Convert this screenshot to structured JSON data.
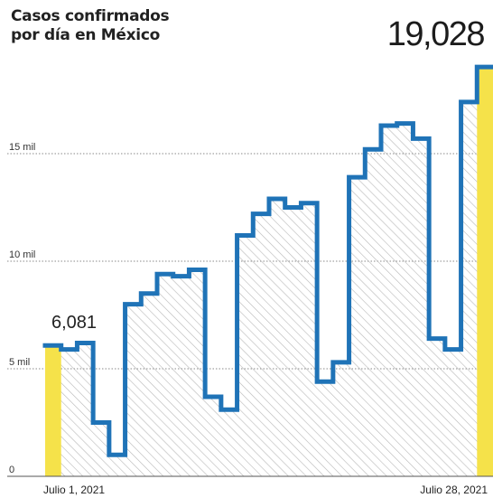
{
  "title_line1": "Casos confirmados",
  "title_line2": "por día en México",
  "colors": {
    "line": "#1f73b7",
    "highlight": "#f5e24a",
    "hatch": "#b8b8b8",
    "grid": "#8a8a8a"
  },
  "chart_data": {
    "type": "line",
    "title": "Casos confirmados por día en México",
    "ylim": [
      0,
      20000
    ],
    "y_ticks": [
      {
        "value": 0,
        "label": "0"
      },
      {
        "value": 5000,
        "label": "5 mil"
      },
      {
        "value": 10000,
        "label": "10 mil"
      },
      {
        "value": 15000,
        "label": "15 mil"
      }
    ],
    "x_labels": {
      "first": "Julio 1, 2021",
      "last": "Julio 28, 2021"
    },
    "first_value_label": "6,081",
    "last_value_label": "19,028",
    "grid": true,
    "series": [
      {
        "x": [
          "2021-07-01",
          "2021-07-02",
          "2021-07-03",
          "2021-07-04",
          "2021-07-05",
          "2021-07-06",
          "2021-07-07",
          "2021-07-08",
          "2021-07-09",
          "2021-07-10",
          "2021-07-11",
          "2021-07-12",
          "2021-07-13",
          "2021-07-14",
          "2021-07-15",
          "2021-07-16",
          "2021-07-17",
          "2021-07-18",
          "2021-07-19",
          "2021-07-20",
          "2021-07-21",
          "2021-07-22",
          "2021-07-23",
          "2021-07-24",
          "2021-07-25",
          "2021-07-26",
          "2021-07-27",
          "2021-07-28"
        ],
        "values": [
          6081,
          5900,
          6200,
          2500,
          1000,
          8000,
          8500,
          9400,
          9300,
          9600,
          3700,
          3100,
          11200,
          12200,
          12900,
          12500,
          12700,
          4400,
          5300,
          13900,
          15200,
          16300,
          16400,
          15700,
          6400,
          5900,
          17400,
          19028
        ]
      }
    ]
  }
}
